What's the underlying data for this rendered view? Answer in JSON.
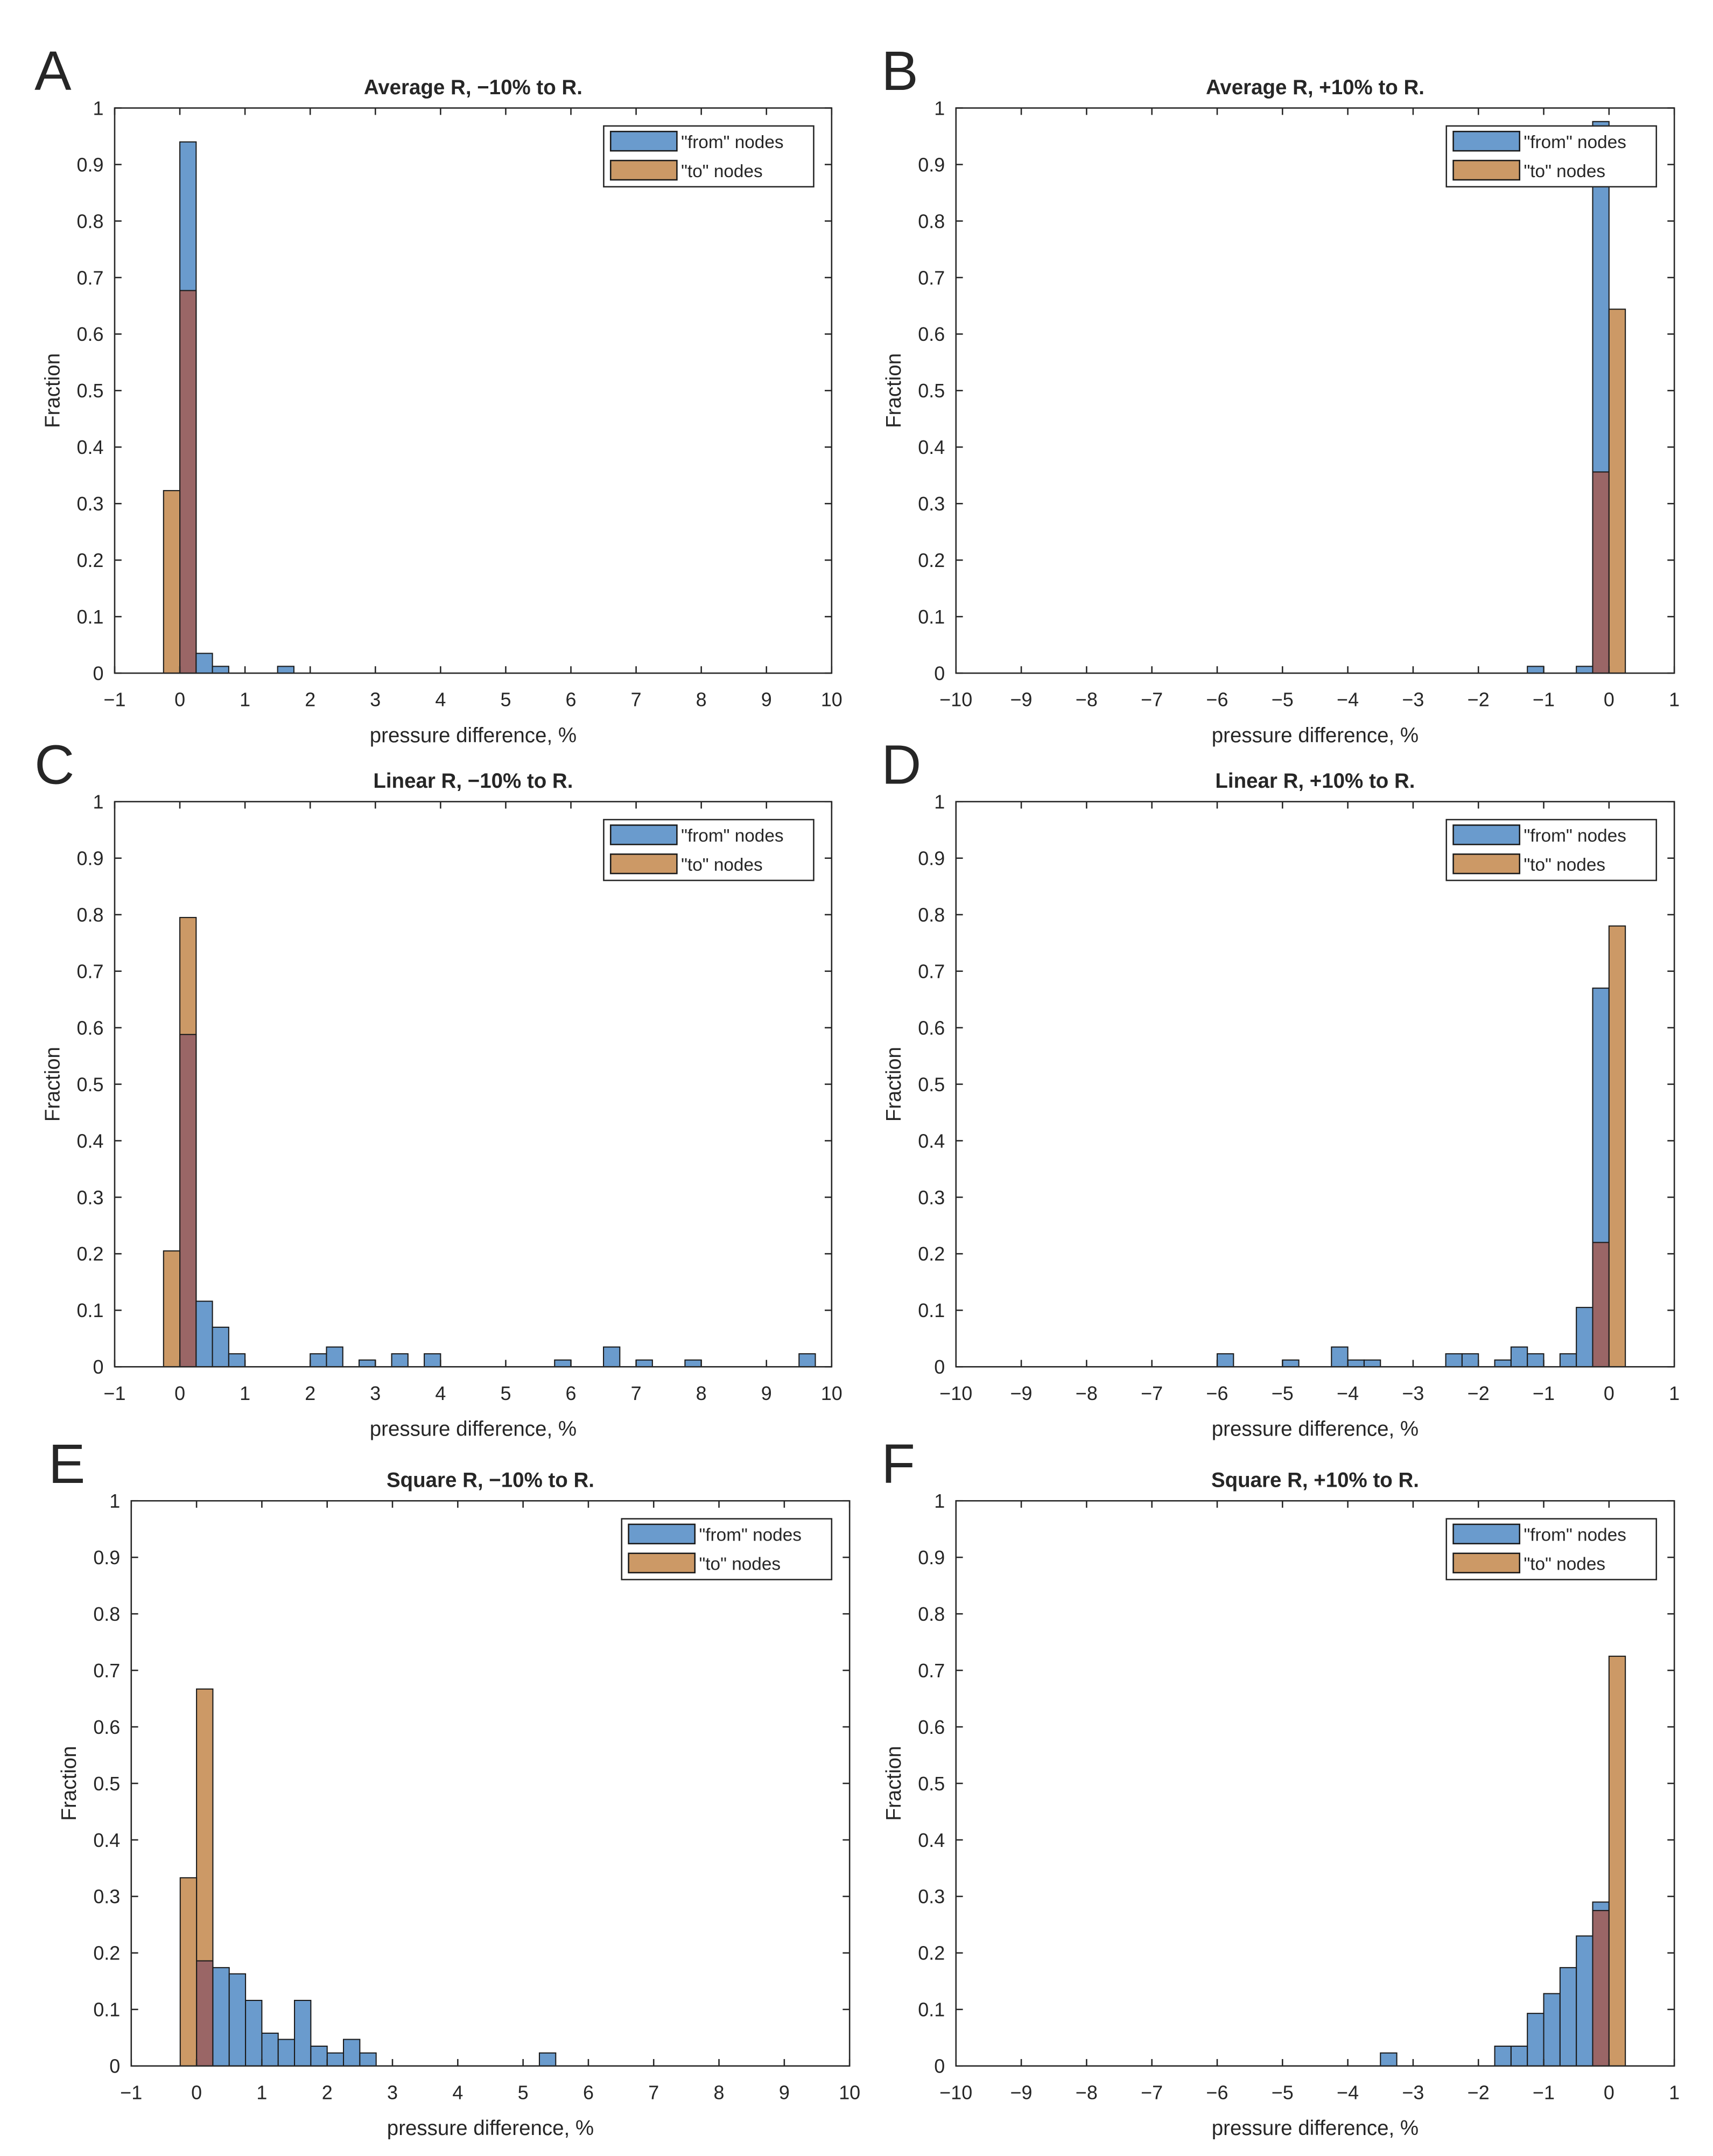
{
  "legend": {
    "from": "\"from\" nodes",
    "to": "\"to\" nodes"
  },
  "colors": {
    "from": "#6a9bcd",
    "to": "#cc9966",
    "overlap": "#9a6666",
    "edge": "#1a1a1a"
  },
  "chart_data": [
    {
      "type": "bar",
      "panel": "A",
      "title": "Average R, −10% to R.",
      "xlabel": "pressure difference, %",
      "ylabel": "Fraction",
      "xlim": [
        -1,
        10
      ],
      "ylim": [
        0,
        1
      ],
      "xticks": [
        -1,
        0,
        1,
        2,
        3,
        4,
        5,
        6,
        7,
        8,
        9,
        10
      ],
      "yticks": [
        0,
        0.1,
        0.2,
        0.3,
        0.4,
        0.5,
        0.6,
        0.7,
        0.8,
        0.9,
        1
      ],
      "bin_width": 0.25,
      "legend_position": "top-right",
      "series": [
        {
          "name": "\"from\" nodes",
          "bins": [
            [
              0,
              0.94
            ],
            [
              0.25,
              0.035
            ],
            [
              0.5,
              0.012
            ],
            [
              1.5,
              0.012
            ]
          ]
        },
        {
          "name": "\"to\" nodes",
          "bins": [
            [
              -0.25,
              0.323
            ],
            [
              0,
              0.677
            ]
          ]
        }
      ]
    },
    {
      "type": "bar",
      "panel": "B",
      "title": "Average R, +10% to R.",
      "xlabel": "pressure difference, %",
      "ylabel": "Fraction",
      "xlim": [
        -10,
        1
      ],
      "ylim": [
        0,
        1
      ],
      "xticks": [
        -10,
        -9,
        -8,
        -7,
        -6,
        -5,
        -4,
        -3,
        -2,
        -1,
        0,
        1
      ],
      "yticks": [
        0,
        0.1,
        0.2,
        0.3,
        0.4,
        0.5,
        0.6,
        0.7,
        0.8,
        0.9,
        1
      ],
      "bin_width": 0.25,
      "legend_position": "top-right",
      "series": [
        {
          "name": "\"from\" nodes",
          "bins": [
            [
              -1.25,
              0.012
            ],
            [
              -0.5,
              0.012
            ],
            [
              -0.25,
              0.976
            ]
          ]
        },
        {
          "name": "\"to\" nodes",
          "bins": [
            [
              -0.25,
              0.356
            ],
            [
              0,
              0.644
            ]
          ]
        }
      ]
    },
    {
      "type": "bar",
      "panel": "C",
      "title": "Linear R, −10% to R.",
      "xlabel": "pressure difference, %",
      "ylabel": "Fraction",
      "xlim": [
        -1,
        10
      ],
      "ylim": [
        0,
        1
      ],
      "xticks": [
        -1,
        0,
        1,
        2,
        3,
        4,
        5,
        6,
        7,
        8,
        9,
        10
      ],
      "yticks": [
        0,
        0.1,
        0.2,
        0.3,
        0.4,
        0.5,
        0.6,
        0.7,
        0.8,
        0.9,
        1
      ],
      "bin_width": 0.25,
      "legend_position": "top-right",
      "series": [
        {
          "name": "\"from\" nodes",
          "bins": [
            [
              0,
              0.588
            ],
            [
              0.25,
              0.116
            ],
            [
              0.5,
              0.07
            ],
            [
              0.75,
              0.023
            ],
            [
              2,
              0.023
            ],
            [
              2.25,
              0.035
            ],
            [
              2.75,
              0.012
            ],
            [
              3.25,
              0.023
            ],
            [
              3.75,
              0.023
            ],
            [
              5.75,
              0.012
            ],
            [
              6.5,
              0.035
            ],
            [
              7,
              0.012
            ],
            [
              7.75,
              0.012
            ],
            [
              9.5,
              0.023
            ]
          ]
        },
        {
          "name": "\"to\" nodes",
          "bins": [
            [
              -0.25,
              0.205
            ],
            [
              0,
              0.795
            ]
          ]
        }
      ]
    },
    {
      "type": "bar",
      "panel": "D",
      "title": "Linear R, +10% to R.",
      "xlabel": "pressure difference, %",
      "ylabel": "Fraction",
      "xlim": [
        -10,
        1
      ],
      "ylim": [
        0,
        1
      ],
      "xticks": [
        -10,
        -9,
        -8,
        -7,
        -6,
        -5,
        -4,
        -3,
        -2,
        -1,
        0,
        1
      ],
      "yticks": [
        0,
        0.1,
        0.2,
        0.3,
        0.4,
        0.5,
        0.6,
        0.7,
        0.8,
        0.9,
        1
      ],
      "bin_width": 0.25,
      "legend_position": "top-right",
      "series": [
        {
          "name": "\"from\" nodes",
          "bins": [
            [
              -6,
              0.023
            ],
            [
              -5,
              0.012
            ],
            [
              -4.25,
              0.035
            ],
            [
              -4,
              0.012
            ],
            [
              -3.75,
              0.012
            ],
            [
              -2.5,
              0.023
            ],
            [
              -2.25,
              0.023
            ],
            [
              -1.75,
              0.012
            ],
            [
              -1.5,
              0.035
            ],
            [
              -1.25,
              0.023
            ],
            [
              -0.75,
              0.023
            ],
            [
              -0.5,
              0.105
            ],
            [
              -0.25,
              0.67
            ]
          ]
        },
        {
          "name": "\"to\" nodes",
          "bins": [
            [
              -0.25,
              0.22
            ],
            [
              0,
              0.78
            ]
          ]
        }
      ]
    },
    {
      "type": "bar",
      "panel": "E",
      "title": "Square R, −10% to R.",
      "xlabel": "pressure difference, %",
      "ylabel": "Fraction",
      "xlim": [
        -1,
        10
      ],
      "ylim": [
        0,
        1
      ],
      "xticks": [
        -1,
        0,
        1,
        2,
        3,
        4,
        5,
        6,
        7,
        8,
        9,
        10
      ],
      "yticks": [
        0,
        0.1,
        0.2,
        0.3,
        0.4,
        0.5,
        0.6,
        0.7,
        0.8,
        0.9,
        1
      ],
      "bin_width": 0.25,
      "legend_position": "top-right",
      "series": [
        {
          "name": "\"from\" nodes",
          "bins": [
            [
              0,
              0.186
            ],
            [
              0.25,
              0.174
            ],
            [
              0.5,
              0.163
            ],
            [
              0.75,
              0.116
            ],
            [
              1,
              0.058
            ],
            [
              1.25,
              0.047
            ],
            [
              1.5,
              0.116
            ],
            [
              1.75,
              0.035
            ],
            [
              2,
              0.023
            ],
            [
              2.25,
              0.047
            ],
            [
              2.5,
              0.023
            ],
            [
              5.25,
              0.023
            ]
          ]
        },
        {
          "name": "\"to\" nodes",
          "bins": [
            [
              -0.25,
              0.333
            ],
            [
              0,
              0.667
            ]
          ]
        }
      ]
    },
    {
      "type": "bar",
      "panel": "F",
      "title": "Square R, +10% to R.",
      "xlabel": "pressure difference, %",
      "ylabel": "Fraction",
      "xlim": [
        -10,
        1
      ],
      "ylim": [
        0,
        1
      ],
      "xticks": [
        -10,
        -9,
        -8,
        -7,
        -6,
        -5,
        -4,
        -3,
        -2,
        -1,
        0,
        1
      ],
      "yticks": [
        0,
        0.1,
        0.2,
        0.3,
        0.4,
        0.5,
        0.6,
        0.7,
        0.8,
        0.9,
        1
      ],
      "bin_width": 0.25,
      "legend_position": "top-right",
      "series": [
        {
          "name": "\"from\" nodes",
          "bins": [
            [
              -3.5,
              0.023
            ],
            [
              -1.75,
              0.035
            ],
            [
              -1.5,
              0.035
            ],
            [
              -1.25,
              0.093
            ],
            [
              -1,
              0.128
            ],
            [
              -0.75,
              0.174
            ],
            [
              -0.5,
              0.23
            ],
            [
              -0.25,
              0.29
            ]
          ]
        },
        {
          "name": "\"to\" nodes",
          "bins": [
            [
              -0.25,
              0.275
            ],
            [
              0,
              0.725
            ]
          ]
        }
      ]
    }
  ]
}
